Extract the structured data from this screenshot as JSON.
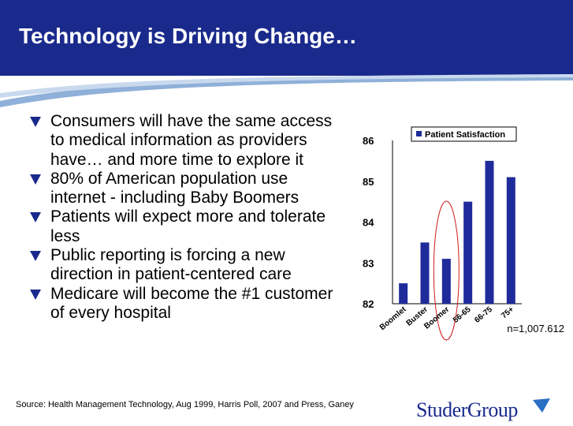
{
  "slide": {
    "title": "Technology is Driving Change…",
    "bullets": [
      "Consumers will have the same access to medical information as providers have… and more time to explore it",
      "80% of American population use internet - including Baby Boomers",
      "Patients will expect more and tolerate less",
      "Public reporting is forcing a new direction in patient-centered care",
      "Medicare will become the #1 customer of every hospital"
    ],
    "source": "Source: Health Management Technology, Aug 1999, Harris Poll, 2007 and Press, Ganey",
    "logo_text": "StuderGroup",
    "colors": {
      "header": "#1a2a8c",
      "bar": "#1f2b9a",
      "highlight_ellipse": "#d11a1a"
    }
  },
  "chart_data": {
    "type": "bar",
    "categories": [
      "Boomlet",
      "Buster",
      "Boomer",
      "56-65",
      "66-75",
      "75+"
    ],
    "series": [
      {
        "name": "Patient Satisfaction",
        "values": [
          82.5,
          83.5,
          83.1,
          84.5,
          85.5,
          85.1
        ]
      }
    ],
    "ylim": [
      82,
      86
    ],
    "yticks": [
      "86",
      "85",
      "84",
      "83",
      "82"
    ],
    "legend": "Patient Satisfaction",
    "legend_position": "top-right",
    "annotation": "n=1,007.612",
    "highlighted_category": "Boomer",
    "grid": false
  }
}
